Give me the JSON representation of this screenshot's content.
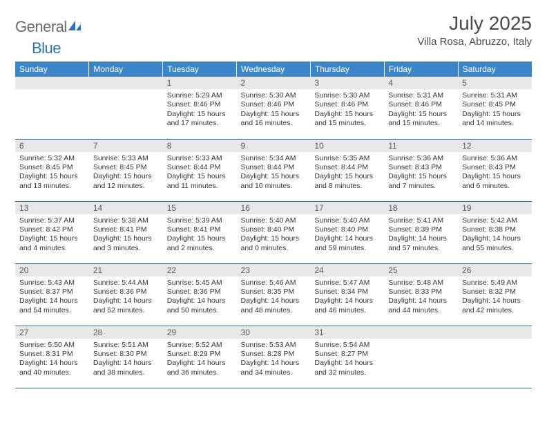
{
  "logo": {
    "gray": "General",
    "blue": "Blue"
  },
  "title": "July 2025",
  "location": "Villa Rosa, Abruzzo, Italy",
  "colors": {
    "header_bg": "#3b86c6",
    "header_text": "#ffffff",
    "daynum_bg": "#e8e8e8",
    "row_border": "#2a6aa8",
    "logo_gray": "#6a6a6a",
    "logo_blue": "#2a74b8"
  },
  "day_headers": [
    "Sunday",
    "Monday",
    "Tuesday",
    "Wednesday",
    "Thursday",
    "Friday",
    "Saturday"
  ],
  "weeks": [
    [
      null,
      null,
      {
        "n": "1",
        "sr": "5:29 AM",
        "ss": "8:46 PM",
        "dl": "15 hours and 17 minutes."
      },
      {
        "n": "2",
        "sr": "5:30 AM",
        "ss": "8:46 PM",
        "dl": "15 hours and 16 minutes."
      },
      {
        "n": "3",
        "sr": "5:30 AM",
        "ss": "8:46 PM",
        "dl": "15 hours and 15 minutes."
      },
      {
        "n": "4",
        "sr": "5:31 AM",
        "ss": "8:46 PM",
        "dl": "15 hours and 15 minutes."
      },
      {
        "n": "5",
        "sr": "5:31 AM",
        "ss": "8:45 PM",
        "dl": "15 hours and 14 minutes."
      }
    ],
    [
      {
        "n": "6",
        "sr": "5:32 AM",
        "ss": "8:45 PM",
        "dl": "15 hours and 13 minutes."
      },
      {
        "n": "7",
        "sr": "5:33 AM",
        "ss": "8:45 PM",
        "dl": "15 hours and 12 minutes."
      },
      {
        "n": "8",
        "sr": "5:33 AM",
        "ss": "8:44 PM",
        "dl": "15 hours and 11 minutes."
      },
      {
        "n": "9",
        "sr": "5:34 AM",
        "ss": "8:44 PM",
        "dl": "15 hours and 10 minutes."
      },
      {
        "n": "10",
        "sr": "5:35 AM",
        "ss": "8:44 PM",
        "dl": "15 hours and 8 minutes."
      },
      {
        "n": "11",
        "sr": "5:36 AM",
        "ss": "8:43 PM",
        "dl": "15 hours and 7 minutes."
      },
      {
        "n": "12",
        "sr": "5:36 AM",
        "ss": "8:43 PM",
        "dl": "15 hours and 6 minutes."
      }
    ],
    [
      {
        "n": "13",
        "sr": "5:37 AM",
        "ss": "8:42 PM",
        "dl": "15 hours and 4 minutes."
      },
      {
        "n": "14",
        "sr": "5:38 AM",
        "ss": "8:41 PM",
        "dl": "15 hours and 3 minutes."
      },
      {
        "n": "15",
        "sr": "5:39 AM",
        "ss": "8:41 PM",
        "dl": "15 hours and 2 minutes."
      },
      {
        "n": "16",
        "sr": "5:40 AM",
        "ss": "8:40 PM",
        "dl": "15 hours and 0 minutes."
      },
      {
        "n": "17",
        "sr": "5:40 AM",
        "ss": "8:40 PM",
        "dl": "14 hours and 59 minutes."
      },
      {
        "n": "18",
        "sr": "5:41 AM",
        "ss": "8:39 PM",
        "dl": "14 hours and 57 minutes."
      },
      {
        "n": "19",
        "sr": "5:42 AM",
        "ss": "8:38 PM",
        "dl": "14 hours and 55 minutes."
      }
    ],
    [
      {
        "n": "20",
        "sr": "5:43 AM",
        "ss": "8:37 PM",
        "dl": "14 hours and 54 minutes."
      },
      {
        "n": "21",
        "sr": "5:44 AM",
        "ss": "8:36 PM",
        "dl": "14 hours and 52 minutes."
      },
      {
        "n": "22",
        "sr": "5:45 AM",
        "ss": "8:36 PM",
        "dl": "14 hours and 50 minutes."
      },
      {
        "n": "23",
        "sr": "5:46 AM",
        "ss": "8:35 PM",
        "dl": "14 hours and 48 minutes."
      },
      {
        "n": "24",
        "sr": "5:47 AM",
        "ss": "8:34 PM",
        "dl": "14 hours and 46 minutes."
      },
      {
        "n": "25",
        "sr": "5:48 AM",
        "ss": "8:33 PM",
        "dl": "14 hours and 44 minutes."
      },
      {
        "n": "26",
        "sr": "5:49 AM",
        "ss": "8:32 PM",
        "dl": "14 hours and 42 minutes."
      }
    ],
    [
      {
        "n": "27",
        "sr": "5:50 AM",
        "ss": "8:31 PM",
        "dl": "14 hours and 40 minutes."
      },
      {
        "n": "28",
        "sr": "5:51 AM",
        "ss": "8:30 PM",
        "dl": "14 hours and 38 minutes."
      },
      {
        "n": "29",
        "sr": "5:52 AM",
        "ss": "8:29 PM",
        "dl": "14 hours and 36 minutes."
      },
      {
        "n": "30",
        "sr": "5:53 AM",
        "ss": "8:28 PM",
        "dl": "14 hours and 34 minutes."
      },
      {
        "n": "31",
        "sr": "5:54 AM",
        "ss": "8:27 PM",
        "dl": "14 hours and 32 minutes."
      },
      null,
      null
    ]
  ],
  "labels": {
    "sunrise": "Sunrise: ",
    "sunset": "Sunset: ",
    "daylight": "Daylight: "
  }
}
